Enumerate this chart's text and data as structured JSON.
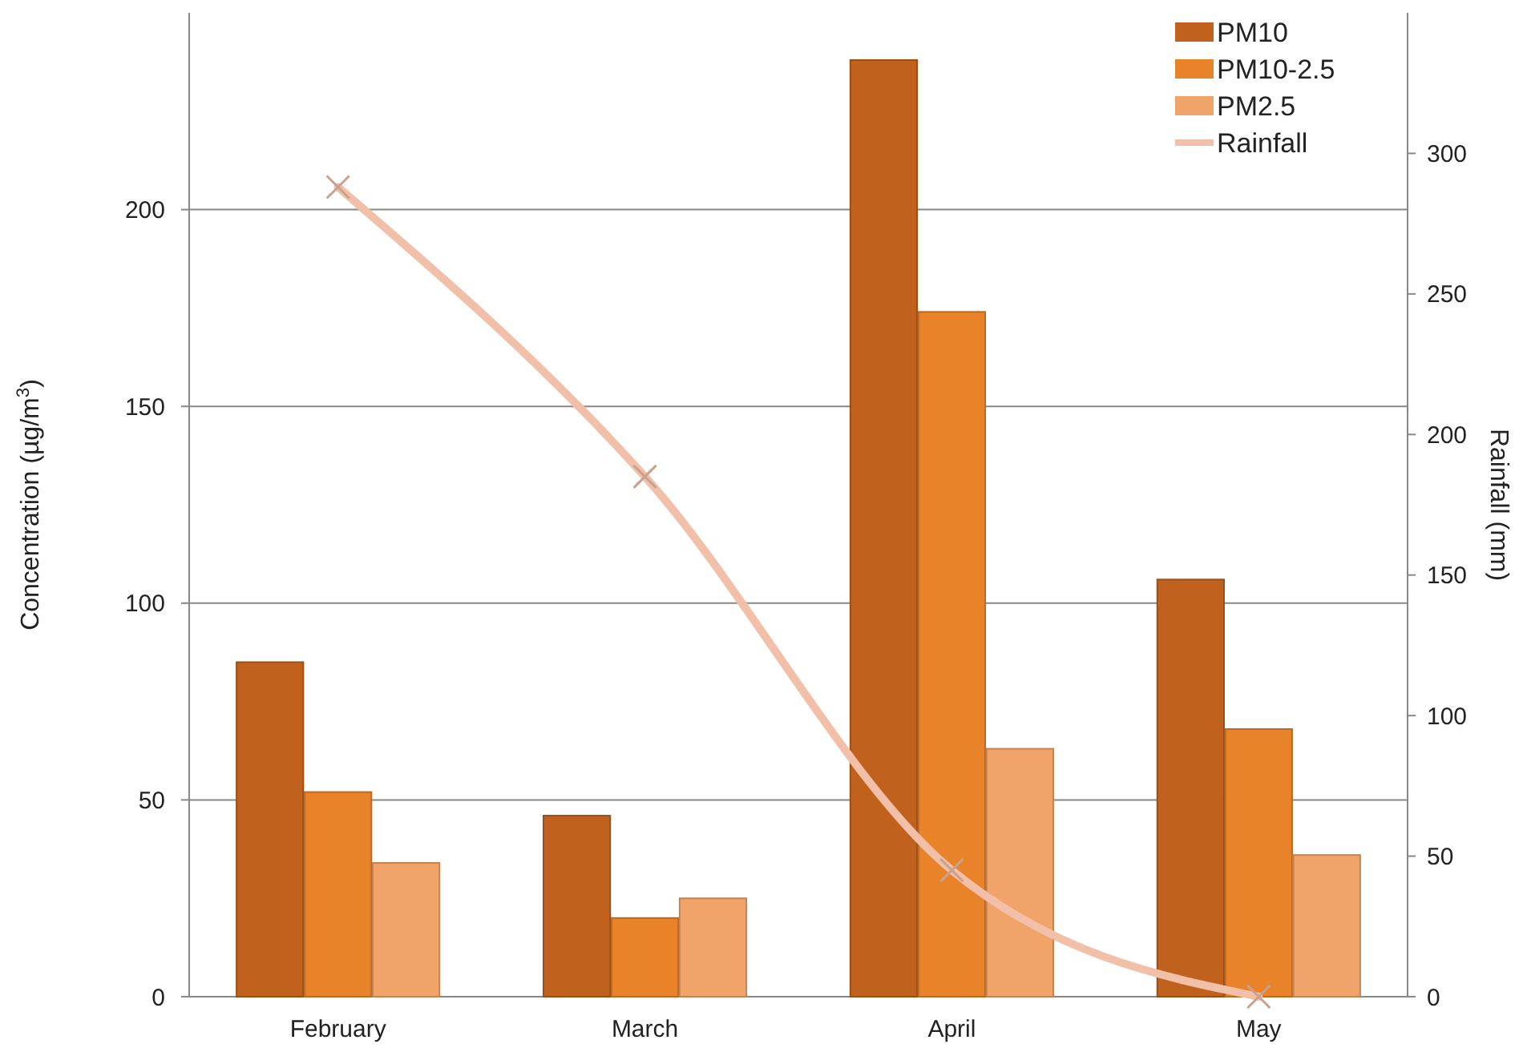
{
  "chart_data": {
    "type": "bar",
    "ylabel": "Concentration (µg/m$^{3}$)",
    "y2label": "Rainfall (mm)",
    "categories": [
      "February",
      "March",
      "April",
      "May"
    ],
    "series": [
      {
        "name": "PM10",
        "color": "#c0621e",
        "values": [
          85,
          46,
          238,
          106
        ]
      },
      {
        "name": "PM10-2.5",
        "color": "#e8832a",
        "values": [
          52,
          20,
          174,
          68
        ]
      },
      {
        "name": "PM2.5",
        "color": "#f0a46a",
        "values": [
          34,
          25,
          63,
          36
        ]
      },
      {
        "name": "Rainfall",
        "type": "line",
        "axis": "y2",
        "color": "#f2c0a8",
        "marker": "cross",
        "values": [
          288,
          185,
          45,
          0
        ]
      }
    ],
    "ylim": [
      0,
      250
    ],
    "yticks": [
      0,
      50,
      100,
      150,
      200
    ],
    "y2lim": [
      0,
      350
    ],
    "y2ticks": [
      0,
      50,
      100,
      150,
      200,
      250,
      300
    ],
    "grid": "y",
    "legend": "top right"
  }
}
